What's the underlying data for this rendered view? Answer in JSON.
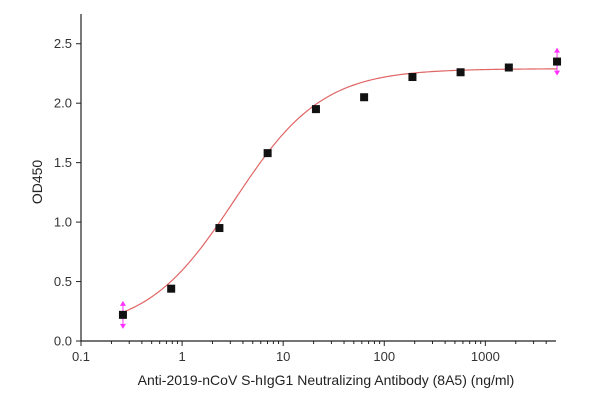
{
  "chart_data": {
    "type": "scatter",
    "title": "",
    "xlabel": "Anti-2019-nCoV S-hIgG1 Neutralizing Antibody (8A5) (ng/ml)",
    "ylabel": "OD450",
    "xscale": "log",
    "xlim": [
      0.1,
      5000
    ],
    "ylim": [
      0.0,
      2.75
    ],
    "x_ticks": [
      0.1,
      1,
      10,
      100,
      1000
    ],
    "x_tick_labels": [
      "0.1",
      "1",
      "10",
      "100",
      "1000"
    ],
    "y_ticks": [
      0.0,
      0.5,
      1.0,
      1.5,
      2.0,
      2.5
    ],
    "y_tick_labels": [
      "0.0",
      "0.5",
      "1.0",
      "1.5",
      "2.0",
      "2.5"
    ],
    "grid": false,
    "legend": "none",
    "series": [
      {
        "marker": "square",
        "color": "#111111",
        "x": [
          0.26,
          0.78,
          2.34,
          7.02,
          21.1,
          63.2,
          190,
          569,
          1707,
          5120
        ],
        "y": [
          0.22,
          0.44,
          0.95,
          1.58,
          1.95,
          2.05,
          2.22,
          2.26,
          2.3,
          2.35
        ]
      }
    ],
    "fit_curve": {
      "model": "4PL",
      "color": "#e06666",
      "bottom": 0.08,
      "top": 2.29,
      "ec50": 3.3,
      "hill": 1.0
    },
    "error_bar_color": "#ff33ff"
  }
}
